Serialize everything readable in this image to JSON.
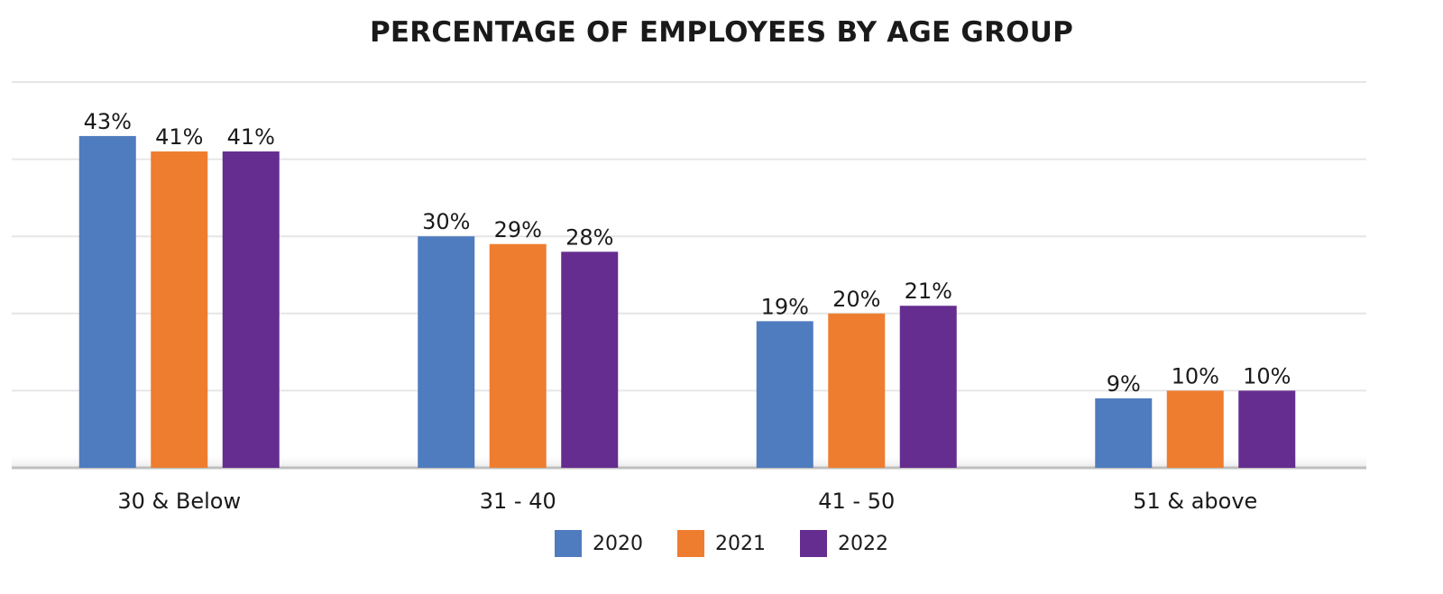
{
  "chart_data": {
    "type": "bar",
    "title": "PERCENTAGE OF EMPLOYEES BY AGE GROUP",
    "xlabel": "",
    "ylabel": "",
    "categories": [
      "30 & Below",
      "31 - 40",
      "41 - 50",
      "51 & above"
    ],
    "series": [
      {
        "name": "2020",
        "color": "#4f7bbf",
        "values": [
          43,
          30,
          19,
          9
        ],
        "labels": [
          "43%",
          "30%",
          "19%",
          "9%"
        ]
      },
      {
        "name": "2021",
        "color": "#ee7d30",
        "values": [
          41,
          29,
          20,
          10
        ],
        "labels": [
          "41%",
          "29%",
          "20%",
          "10%"
        ]
      },
      {
        "name": "2022",
        "color": "#652d8f",
        "values": [
          41,
          28,
          21,
          10
        ],
        "labels": [
          "41%",
          "28%",
          "21%",
          "10%"
        ]
      }
    ],
    "ylim": [
      0,
      50
    ],
    "grid": true,
    "legend_position": "bottom",
    "colors": {
      "gridline": "#e6e6e6",
      "baseline": "#bfbfbf"
    }
  }
}
